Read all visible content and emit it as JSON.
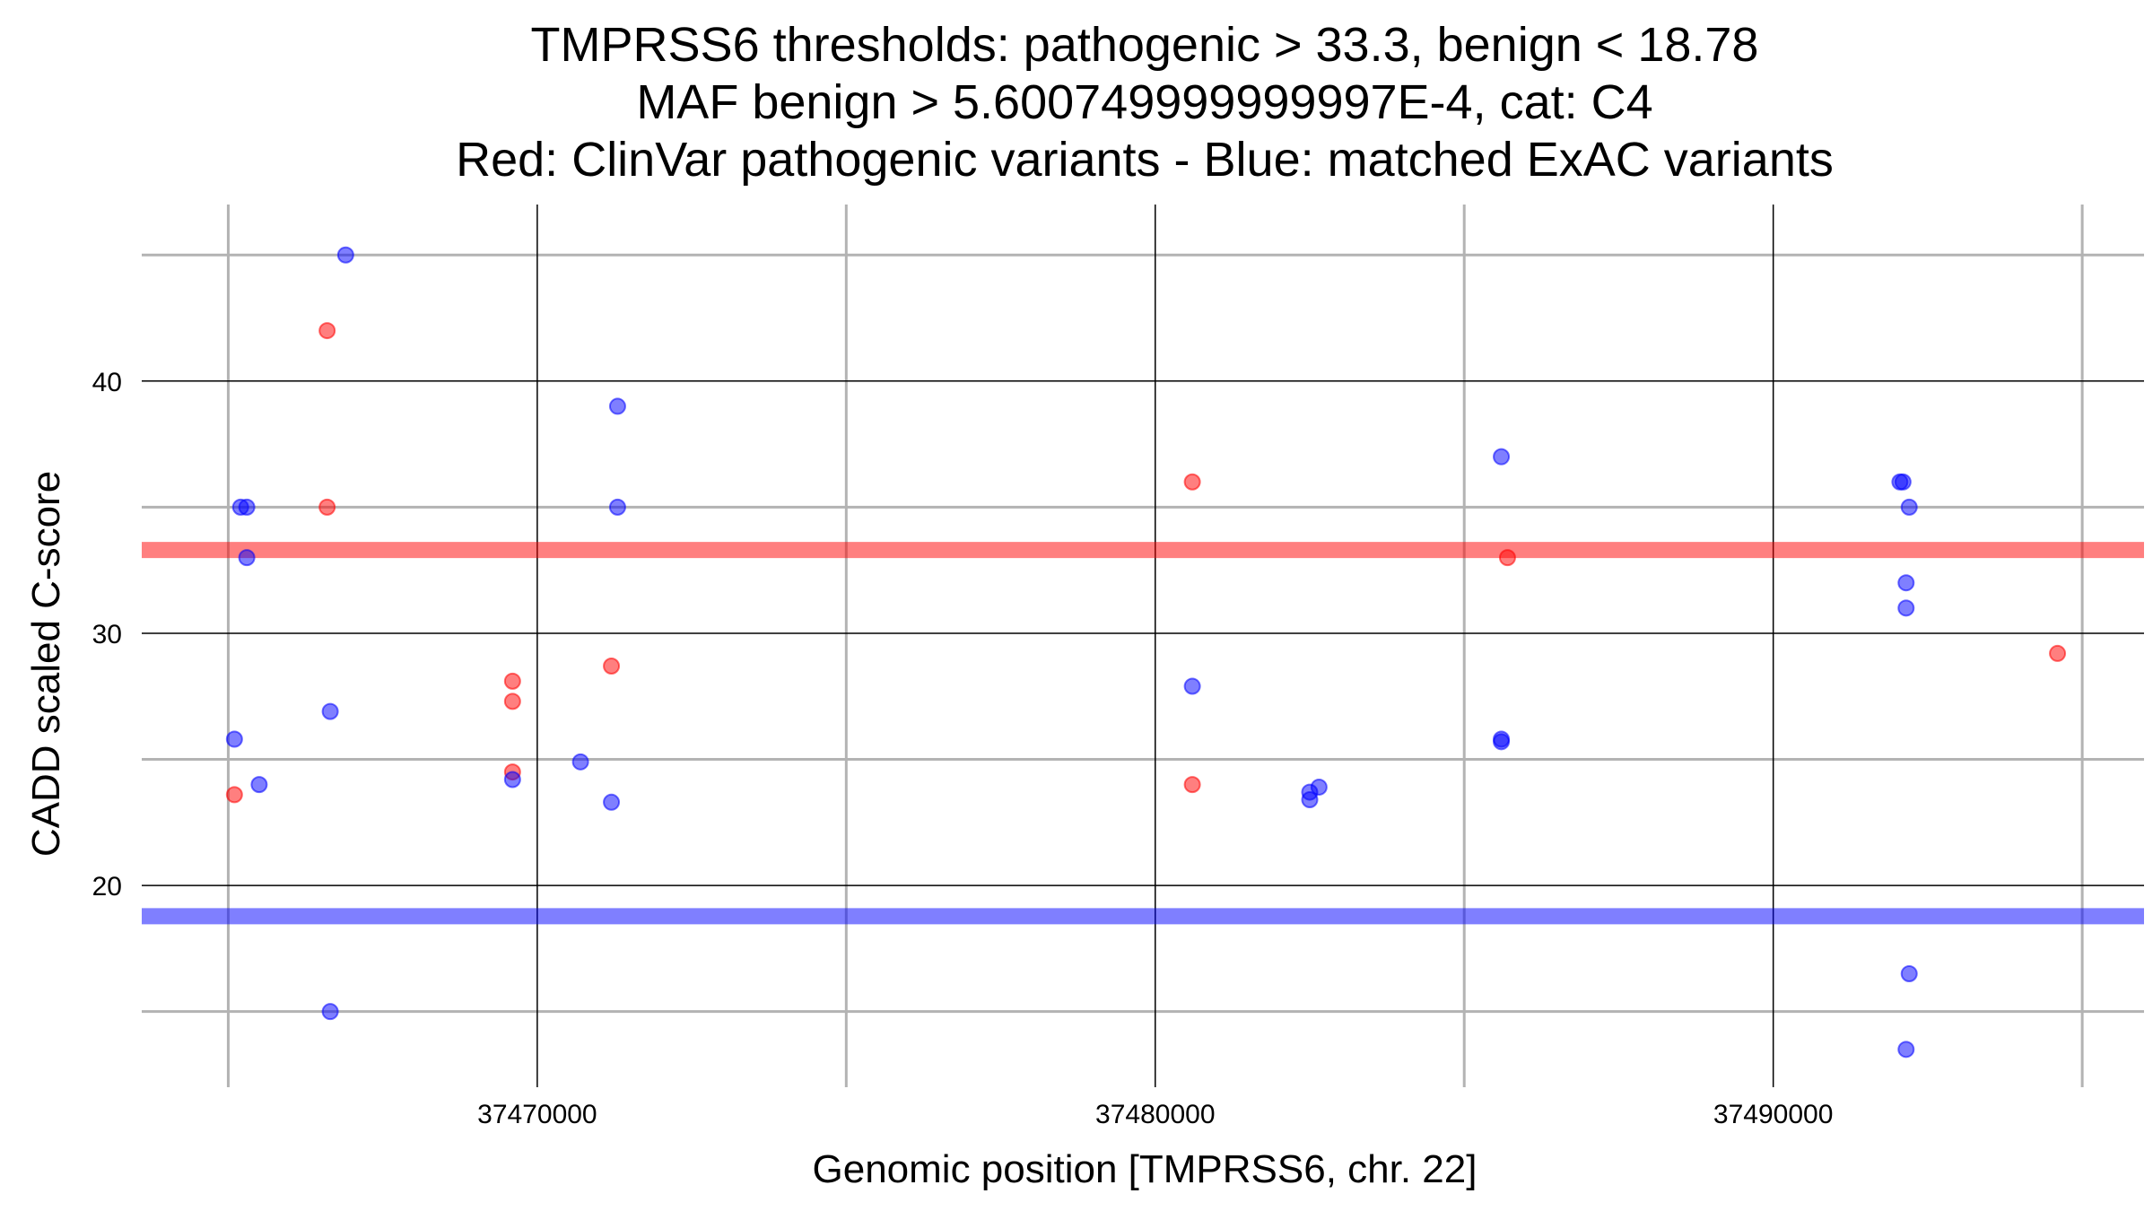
{
  "chart_data": {
    "type": "scatter",
    "title_lines": [
      "TMPRSS6 thresholds: pathogenic > 33.3, benign < 18.78",
      "MAF benign > 5.600749999999997E-4, cat: C4",
      "Red: ClinVar pathogenic variants - Blue: matched ExAC variants"
    ],
    "xlabel": "Genomic position [TMPRSS6, chr. 22]",
    "ylabel": "CADD scaled C-score",
    "xlim": [
      37463600,
      37496000
    ],
    "ylim": [
      12.0,
      47.0
    ],
    "x_ticks": [
      37470000,
      37480000,
      37490000
    ],
    "x_tick_labels": [
      "37470000",
      "37480000",
      "37490000"
    ],
    "x_minor_ticks": [
      37465000,
      37475000,
      37485000,
      37495000
    ],
    "y_ticks": [
      20,
      30,
      40
    ],
    "y_tick_labels": [
      "20",
      "30",
      "40"
    ],
    "y_minor_ticks": [
      15,
      25,
      35,
      45
    ],
    "grid": true,
    "thresholds": [
      {
        "kind": "pathogenic",
        "value": 33.3,
        "color": "#ff0000",
        "opacity": 0.5
      },
      {
        "kind": "benign",
        "value": 18.78,
        "color": "#0000ff",
        "opacity": 0.5
      }
    ],
    "series": [
      {
        "color": "#ff0000",
        "points": [
          {
            "x": 37466600,
            "y": 42.0
          },
          {
            "x": 37466600,
            "y": 35.0
          },
          {
            "x": 37465100,
            "y": 23.6
          },
          {
            "x": 37469600,
            "y": 28.1
          },
          {
            "x": 37469600,
            "y": 27.3
          },
          {
            "x": 37469600,
            "y": 24.5
          },
          {
            "x": 37471200,
            "y": 28.7
          },
          {
            "x": 37480600,
            "y": 36.0
          },
          {
            "x": 37480600,
            "y": 24.0
          },
          {
            "x": 37485700,
            "y": 33.0
          },
          {
            "x": 37494600,
            "y": 29.2
          }
        ]
      },
      {
        "color": "#0000ff",
        "points": [
          {
            "x": 37466900,
            "y": 45.0
          },
          {
            "x": 37465200,
            "y": 35.0
          },
          {
            "x": 37465300,
            "y": 35.0
          },
          {
            "x": 37465300,
            "y": 33.0
          },
          {
            "x": 37465100,
            "y": 25.8
          },
          {
            "x": 37465500,
            "y": 24.0
          },
          {
            "x": 37466650,
            "y": 26.9
          },
          {
            "x": 37466650,
            "y": 15.0
          },
          {
            "x": 37469600,
            "y": 24.2
          },
          {
            "x": 37470700,
            "y": 24.9
          },
          {
            "x": 37471300,
            "y": 39.0
          },
          {
            "x": 37471300,
            "y": 35.0
          },
          {
            "x": 37471200,
            "y": 23.3
          },
          {
            "x": 37480600,
            "y": 27.9
          },
          {
            "x": 37482500,
            "y": 23.7
          },
          {
            "x": 37482500,
            "y": 23.4
          },
          {
            "x": 37482650,
            "y": 23.9
          },
          {
            "x": 37485600,
            "y": 37.0
          },
          {
            "x": 37485600,
            "y": 25.8
          },
          {
            "x": 37485600,
            "y": 25.7
          },
          {
            "x": 37492050,
            "y": 36.0
          },
          {
            "x": 37492100,
            "y": 36.0
          },
          {
            "x": 37492200,
            "y": 35.0
          },
          {
            "x": 37492150,
            "y": 32.0
          },
          {
            "x": 37492150,
            "y": 31.0
          },
          {
            "x": 37492200,
            "y": 16.5
          },
          {
            "x": 37492150,
            "y": 13.5
          }
        ]
      }
    ]
  }
}
